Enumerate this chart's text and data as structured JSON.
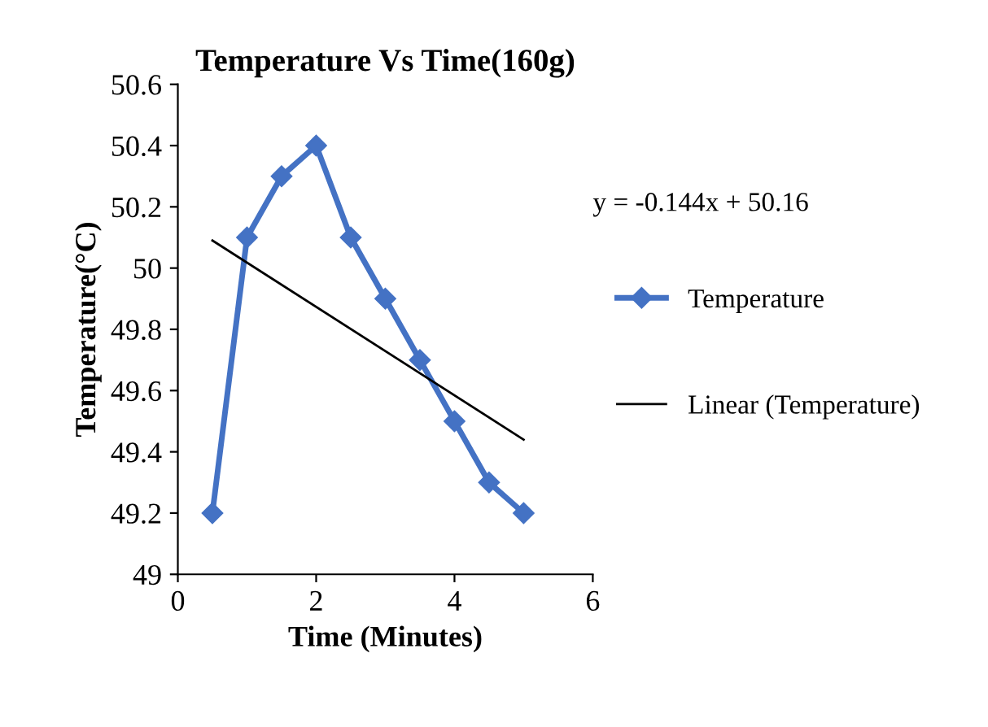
{
  "chart_data": {
    "type": "line",
    "title": "Temperature Vs Time(160g)",
    "xlabel": "Time (Minutes)",
    "ylabel": "Temperature(°C)",
    "x": [
      0.5,
      1,
      1.5,
      2,
      2.5,
      3,
      3.5,
      4,
      4.5,
      5
    ],
    "series": [
      {
        "name": "Temperature",
        "color": "#4472c4",
        "values": [
          49.2,
          50.1,
          50.3,
          50.4,
          50.1,
          49.9,
          49.7,
          49.5,
          49.3,
          49.2
        ],
        "marker": "diamond"
      },
      {
        "name": "Linear (Temperature)",
        "color": "#000000",
        "type": "line",
        "x": [
          0.5,
          5
        ],
        "values": [
          50.09,
          49.44
        ],
        "marker": "none"
      }
    ],
    "xlim": [
      0,
      6
    ],
    "xticks": [
      0,
      2,
      4,
      6
    ],
    "ylim": [
      49,
      50.6
    ],
    "yticks": [
      49,
      49.2,
      49.4,
      49.6,
      49.8,
      50,
      50.2,
      50.4,
      50.6
    ],
    "annotations": [
      "y = -0.144x + 50.16"
    ],
    "legend": "right",
    "grid": false
  }
}
